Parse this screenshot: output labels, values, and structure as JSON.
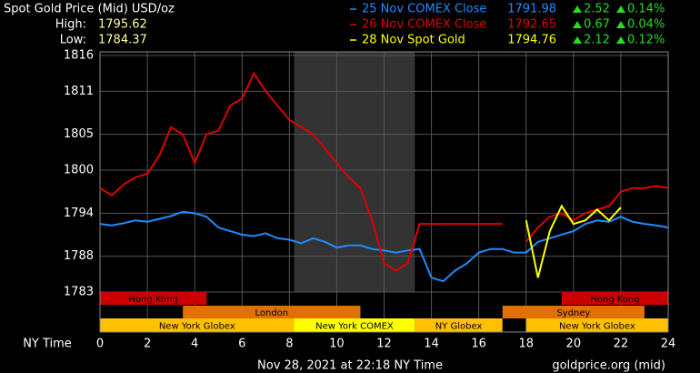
{
  "chart_data": {
    "type": "line",
    "title": "Spot Gold Price (Mid) USD/oz",
    "high_label": "High:",
    "high": 1795.62,
    "low_label": "Low:",
    "low": 1784.37,
    "x": [
      0,
      0.5,
      1,
      1.5,
      2,
      2.5,
      3,
      3.5,
      4,
      4.5,
      5,
      5.5,
      6,
      6.5,
      7,
      7.5,
      8,
      8.5,
      9,
      9.5,
      10,
      10.5,
      11,
      11.5,
      12,
      12.5,
      13,
      13.5,
      14,
      14.5,
      15,
      15.5,
      16,
      16.5,
      17,
      17.5,
      18,
      18.5,
      19,
      19.5,
      20,
      20.5,
      21,
      21.5,
      22,
      22.5,
      23,
      23.5,
      24
    ],
    "series": [
      {
        "name": "25 Nov COMEX Close",
        "color": "#1e8cff",
        "close": 1791.98,
        "change": 2.52,
        "change_pct": "0.14%",
        "values": [
          1792.5,
          1792.3,
          1792.6,
          1793,
          1792.8,
          1793.2,
          1793.6,
          1794.2,
          1794,
          1793.5,
          1792,
          1791.5,
          1791,
          1790.8,
          1791.2,
          1790.5,
          1790.3,
          1789.8,
          1790.5,
          1790,
          1789.2,
          1789.5,
          1789.5,
          1789,
          1788.8,
          1788.5,
          1788.8,
          1789,
          1785,
          1784.5,
          1786,
          1787,
          1788.5,
          1789,
          1789,
          1788.5,
          1788.5,
          1790,
          1790.5,
          1791,
          1791.5,
          1792.5,
          1793,
          1792.8,
          1793.5,
          1792.8,
          1792.5,
          1792.3,
          1792
        ]
      },
      {
        "name": "26 Nov COMEX Close",
        "color": "#dd0000",
        "close": 1792.65,
        "change": 0.67,
        "change_pct": "0.04%",
        "values": [
          1797.5,
          1796.5,
          1798,
          1799,
          1799.5,
          1802,
          1806,
          1805,
          1801,
          1805,
          1805.5,
          1809,
          1810,
          1813.5,
          1811,
          1809,
          1807,
          1806,
          1805,
          1803,
          1801,
          1799,
          1797.5,
          1793,
          1787,
          1786,
          1787,
          1792.5,
          1792.5,
          1792.5,
          1792.5,
          1792.5,
          1792.5,
          1792.5,
          1792.5,
          null,
          1790,
          1792,
          1793.5,
          1794,
          1793,
          1794,
          1794.5,
          1795,
          1797,
          1797.5,
          1797.5,
          1797.8,
          1797.5
        ]
      },
      {
        "name": "28 Nov Spot Gold",
        "color": "#ffff00",
        "close": 1794.76,
        "change": 2.12,
        "change_pct": "0.12%",
        "values": [
          null,
          null,
          null,
          null,
          null,
          null,
          null,
          null,
          null,
          null,
          null,
          null,
          null,
          null,
          null,
          null,
          null,
          null,
          null,
          null,
          null,
          null,
          null,
          null,
          null,
          null,
          null,
          null,
          null,
          null,
          null,
          null,
          null,
          null,
          null,
          null,
          1793,
          1785,
          1791.5,
          1795,
          1792.5,
          1793,
          1794.5,
          1793,
          1794.8,
          null,
          null,
          null,
          null
        ]
      }
    ],
    "xlim": [
      0,
      24
    ],
    "xticks": [
      0,
      2,
      4,
      6,
      8,
      10,
      12,
      14,
      16,
      18,
      20,
      22,
      24
    ],
    "ylim": [
      1783,
      1816
    ],
    "yticks": [
      1783,
      1788,
      1794,
      1800,
      1805,
      1811,
      1816
    ],
    "xlabel": "NY Time",
    "grid": true,
    "shaded": [
      8.2,
      13.3
    ],
    "sessions": [
      {
        "name": "Hong Kong",
        "row": 0,
        "start": 0,
        "end": 4.5,
        "color": "#cc0000"
      },
      {
        "name": "Hong Kong",
        "row": 0,
        "start": 19.5,
        "end": 24,
        "color": "#cc0000"
      },
      {
        "name": "London",
        "row": 1,
        "start": 3.5,
        "end": 11,
        "color": "#e07000"
      },
      {
        "name": "Sydney",
        "row": 1,
        "start": 17,
        "end": 23,
        "color": "#e07000"
      },
      {
        "name": "New York Globex",
        "row": 2,
        "start": 0,
        "end": 8.2,
        "color": "#ffc000"
      },
      {
        "name": "New York COMEX",
        "row": 2,
        "start": 8.2,
        "end": 13.3,
        "color": "#ffff00"
      },
      {
        "name": "NY Globex",
        "row": 2,
        "start": 13.3,
        "end": 17,
        "color": "#ffc000"
      },
      {
        "name": "New York Globex",
        "row": 2,
        "start": 18,
        "end": 24,
        "color": "#ffc000"
      }
    ],
    "timestamp": "Nov 28, 2021 at 22:18 NY Time",
    "source": "goldprice.org (mid)"
  }
}
